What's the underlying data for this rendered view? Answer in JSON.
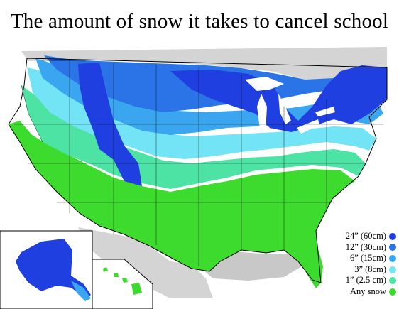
{
  "title": "The amount of snow it takes to cancel school",
  "legend": {
    "items": [
      {
        "label": "24” (60cm)",
        "color": "#1f3fe0"
      },
      {
        "label": "12” (30cm)",
        "color": "#2a74e8"
      },
      {
        "label": "6” (15cm)",
        "color": "#3aa6ef"
      },
      {
        "label": "3” (8cm)",
        "color": "#73e4f5"
      },
      {
        "label": "1” (2.5 cm)",
        "color": "#4ce3a4"
      },
      {
        "label": "Any snow",
        "color": "#3ddb2e"
      }
    ]
  },
  "colors": {
    "background": "#ffffff",
    "water": "#c8c8c8",
    "land_outside": "#d4d4d4",
    "border": "#000000"
  }
}
